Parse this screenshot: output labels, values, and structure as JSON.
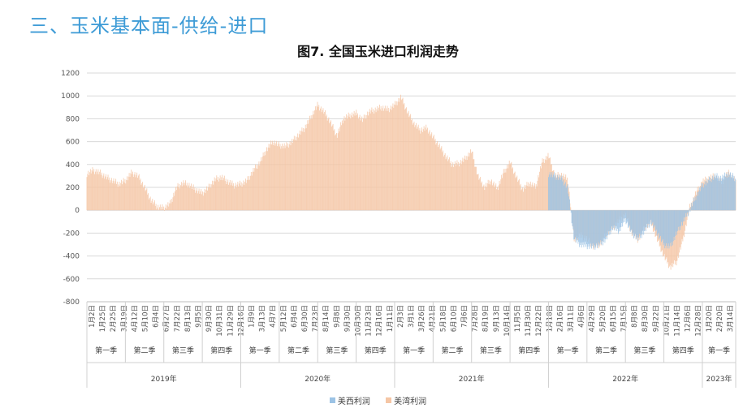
{
  "page": {
    "section_title": "三、玉米基本面-供给-进口"
  },
  "chart_data": {
    "type": "area",
    "title": "图7. 全国玉米进口利润走势",
    "xlabel": "",
    "ylabel": "",
    "ylim": [
      -800,
      1200
    ],
    "yticks": [
      -800,
      -600,
      -400,
      -200,
      0,
      200,
      400,
      600,
      800,
      1000,
      1200
    ],
    "grid": true,
    "legend_position": "bottom",
    "x_tick_labels": [
      "1月2日",
      "1月25日",
      "2月25日",
      "3月19日",
      "4月12日",
      "5月10日",
      "6月4日",
      "6月27日",
      "7月22日",
      "8月13日",
      "9月5日",
      "9月30日",
      "10月31日",
      "11月29日",
      "12月16日",
      "1月9日",
      "3月13日",
      "4月7日",
      "5月12日",
      "6月4日",
      "6月30日",
      "7月23日",
      "8月14日",
      "9月8日",
      "9月30日",
      "10月30日",
      "11月23日",
      "12月16日",
      "1月11日",
      "2月3日",
      "3月1日",
      "3月26日",
      "4月21日",
      "5月18日",
      "6月10日",
      "7月6日",
      "7月28日",
      "8月19日",
      "9月13日",
      "10月14日",
      "11月5日",
      "11月30日",
      "12月22日",
      "1月18日",
      "2月16日",
      "3月11日",
      "4月6日",
      "4月29日",
      "5月20日",
      "6月15日",
      "7月15日",
      "8月8日",
      "8月30日",
      "9月22日",
      "10月21日",
      "11月14日",
      "12月6日",
      "12月28日",
      "1月20日",
      "2月20日",
      "3月14日"
    ],
    "quarters": [
      {
        "label": "第一季",
        "start": 0.0,
        "end": 3.0
      },
      {
        "label": "第二季",
        "start": 3.0,
        "end": 6.0
      },
      {
        "label": "第三季",
        "start": 6.0,
        "end": 9.0
      },
      {
        "label": "第四季",
        "start": 9.0,
        "end": 12.0
      },
      {
        "label": "第一季",
        "start": 12.0,
        "end": 15.0
      },
      {
        "label": "第二季",
        "start": 15.0,
        "end": 18.0
      },
      {
        "label": "第三季",
        "start": 18.0,
        "end": 21.0
      },
      {
        "label": "第四季",
        "start": 21.0,
        "end": 24.0
      },
      {
        "label": "第一季",
        "start": 24.0,
        "end": 27.0
      },
      {
        "label": "第二季",
        "start": 27.0,
        "end": 30.0
      },
      {
        "label": "第三季",
        "start": 30.0,
        "end": 33.0
      },
      {
        "label": "第四季",
        "start": 33.0,
        "end": 36.0
      },
      {
        "label": "第一季",
        "start": 36.0,
        "end": 39.0
      },
      {
        "label": "第二季",
        "start": 39.0,
        "end": 42.0
      },
      {
        "label": "第三季",
        "start": 42.0,
        "end": 45.0
      },
      {
        "label": "第四季",
        "start": 45.0,
        "end": 48.0
      },
      {
        "label": "第一季",
        "start": 48.0,
        "end": 50.6
      }
    ],
    "years": [
      {
        "label": "2019年",
        "start": 0.0,
        "end": 12.0
      },
      {
        "label": "2020年",
        "start": 12.0,
        "end": 24.0
      },
      {
        "label": "2021年",
        "start": 24.0,
        "end": 36.0
      },
      {
        "label": "2022年",
        "start": 36.0,
        "end": 48.0
      },
      {
        "label": "2023年",
        "start": 48.0,
        "end": 50.6
      }
    ],
    "x_range_months": [
      0,
      50.6
    ],
    "series": [
      {
        "name": "美西利润",
        "color": "#9cc3e5",
        "points": [
          [
            36.0,
            320
          ],
          [
            36.5,
            300
          ],
          [
            37.0,
            280
          ],
          [
            37.5,
            200
          ],
          [
            38.0,
            -250
          ],
          [
            38.5,
            -300
          ],
          [
            39.0,
            -310
          ],
          [
            39.5,
            -320
          ],
          [
            40.0,
            -300
          ],
          [
            40.5,
            -250
          ],
          [
            41.0,
            -150
          ],
          [
            41.5,
            -180
          ],
          [
            42.0,
            -80
          ],
          [
            42.5,
            -200
          ],
          [
            43.0,
            -250
          ],
          [
            43.5,
            -180
          ],
          [
            44.0,
            -100
          ],
          [
            44.5,
            -200
          ],
          [
            45.0,
            -300
          ],
          [
            45.5,
            -320
          ],
          [
            46.0,
            -200
          ],
          [
            46.5,
            -100
          ],
          [
            47.0,
            0
          ],
          [
            47.5,
            120
          ],
          [
            48.0,
            220
          ],
          [
            48.5,
            260
          ],
          [
            49.0,
            300
          ],
          [
            49.5,
            280
          ],
          [
            50.0,
            320
          ],
          [
            50.6,
            280
          ]
        ]
      },
      {
        "name": "美湾利润",
        "color": "#f5c6a5",
        "points": [
          [
            0.0,
            320
          ],
          [
            0.5,
            350
          ],
          [
            1.0,
            330
          ],
          [
            1.5,
            290
          ],
          [
            2.0,
            260
          ],
          [
            2.5,
            230
          ],
          [
            3.0,
            260
          ],
          [
            3.5,
            330
          ],
          [
            4.0,
            300
          ],
          [
            4.5,
            200
          ],
          [
            5.0,
            90
          ],
          [
            5.5,
            30
          ],
          [
            6.0,
            20
          ],
          [
            6.5,
            60
          ],
          [
            7.0,
            200
          ],
          [
            7.5,
            240
          ],
          [
            8.0,
            220
          ],
          [
            8.5,
            180
          ],
          [
            9.0,
            150
          ],
          [
            9.5,
            200
          ],
          [
            10.0,
            270
          ],
          [
            10.5,
            290
          ],
          [
            11.0,
            250
          ],
          [
            11.5,
            220
          ],
          [
            12.0,
            230
          ],
          [
            12.5,
            260
          ],
          [
            13.0,
            350
          ],
          [
            13.5,
            420
          ],
          [
            14.0,
            530
          ],
          [
            14.5,
            600
          ],
          [
            15.0,
            570
          ],
          [
            15.5,
            560
          ],
          [
            16.0,
            600
          ],
          [
            16.5,
            660
          ],
          [
            17.0,
            720
          ],
          [
            17.5,
            820
          ],
          [
            18.0,
            920
          ],
          [
            18.5,
            860
          ],
          [
            19.0,
            770
          ],
          [
            19.5,
            650
          ],
          [
            20.0,
            800
          ],
          [
            20.5,
            830
          ],
          [
            21.0,
            850
          ],
          [
            21.5,
            790
          ],
          [
            22.0,
            860
          ],
          [
            22.5,
            880
          ],
          [
            23.0,
            900
          ],
          [
            23.5,
            880
          ],
          [
            24.0,
            920
          ],
          [
            24.5,
            990
          ],
          [
            25.0,
            860
          ],
          [
            25.5,
            760
          ],
          [
            26.0,
            700
          ],
          [
            26.5,
            720
          ],
          [
            27.0,
            640
          ],
          [
            27.5,
            560
          ],
          [
            28.0,
            470
          ],
          [
            28.5,
            400
          ],
          [
            29.0,
            410
          ],
          [
            29.5,
            450
          ],
          [
            30.0,
            520
          ],
          [
            30.5,
            300
          ],
          [
            31.0,
            200
          ],
          [
            31.5,
            260
          ],
          [
            32.0,
            190
          ],
          [
            32.5,
            330
          ],
          [
            33.0,
            420
          ],
          [
            33.5,
            290
          ],
          [
            34.0,
            180
          ],
          [
            34.5,
            240
          ],
          [
            35.0,
            200
          ],
          [
            35.5,
            420
          ],
          [
            36.0,
            480
          ],
          [
            36.5,
            300
          ],
          [
            37.0,
            310
          ],
          [
            37.5,
            270
          ],
          [
            38.0,
            -260
          ],
          [
            38.5,
            -220
          ],
          [
            39.0,
            -250
          ],
          [
            39.5,
            -320
          ],
          [
            40.0,
            -300
          ],
          [
            40.5,
            -210
          ],
          [
            41.0,
            -160
          ],
          [
            41.5,
            -90
          ],
          [
            42.0,
            -40
          ],
          [
            42.5,
            -200
          ],
          [
            43.0,
            -260
          ],
          [
            43.5,
            -150
          ],
          [
            44.0,
            -110
          ],
          [
            44.5,
            -260
          ],
          [
            45.0,
            -400
          ],
          [
            45.5,
            -500
          ],
          [
            46.0,
            -450
          ],
          [
            46.5,
            -250
          ],
          [
            47.0,
            20
          ],
          [
            47.5,
            150
          ],
          [
            48.0,
            250
          ],
          [
            48.5,
            280
          ],
          [
            49.0,
            300
          ],
          [
            49.5,
            240
          ],
          [
            50.0,
            330
          ],
          [
            50.6,
            260
          ]
        ]
      }
    ]
  },
  "legend": [
    {
      "label": "美西利润",
      "color": "#9cc3e5"
    },
    {
      "label": "美湾利润",
      "color": "#f5c6a5"
    }
  ]
}
